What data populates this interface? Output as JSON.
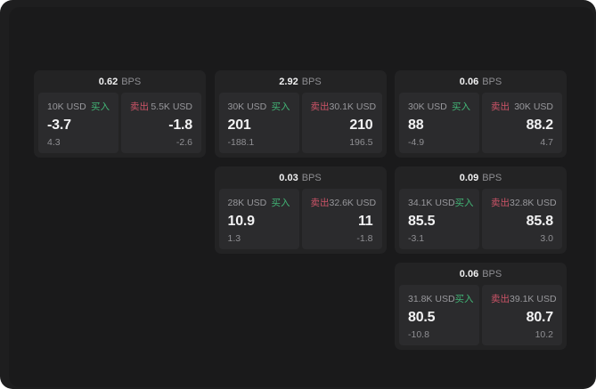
{
  "labels": {
    "bps_unit": "BPS",
    "buy": "买入",
    "sell": "卖出"
  },
  "colors": {
    "page_bg": "#1e1e1f",
    "card_bg": "#232324",
    "panel_bg": "#2b2b2d",
    "buy_green": "#42b576",
    "sell_red": "#cd5468",
    "primary_text": "#f2f2f3",
    "secondary_text": "#98989c"
  },
  "cards": [
    {
      "bps": "0.62",
      "buy": {
        "amount": "10K USD",
        "price": "-3.7",
        "change": "4.3"
      },
      "sell": {
        "amount": "5.5K USD",
        "price": "-1.8",
        "change": "-2.6"
      }
    },
    {
      "bps": "2.92",
      "buy": {
        "amount": "30K USD",
        "price": "201",
        "change": "-188.1"
      },
      "sell": {
        "amount": "30.1K USD",
        "price": "210",
        "change": "196.5"
      }
    },
    {
      "bps": "0.06",
      "buy": {
        "amount": "30K USD",
        "price": "88",
        "change": "-4.9"
      },
      "sell": {
        "amount": "30K USD",
        "price": "88.2",
        "change": "4.7"
      }
    },
    {
      "bps": "0.03",
      "buy": {
        "amount": "28K USD",
        "price": "10.9",
        "change": "1.3"
      },
      "sell": {
        "amount": "32.6K USD",
        "price": "11",
        "change": "-1.8"
      }
    },
    {
      "bps": "0.09",
      "buy": {
        "amount": "34.1K USD",
        "price": "85.5",
        "change": "-3.1"
      },
      "sell": {
        "amount": "32.8K USD",
        "price": "85.8",
        "change": "3.0"
      }
    },
    {
      "bps": "0.06",
      "buy": {
        "amount": "31.8K USD",
        "price": "80.5",
        "change": "-10.8"
      },
      "sell": {
        "amount": "39.1K USD",
        "price": "80.7",
        "change": "10.2"
      }
    }
  ]
}
